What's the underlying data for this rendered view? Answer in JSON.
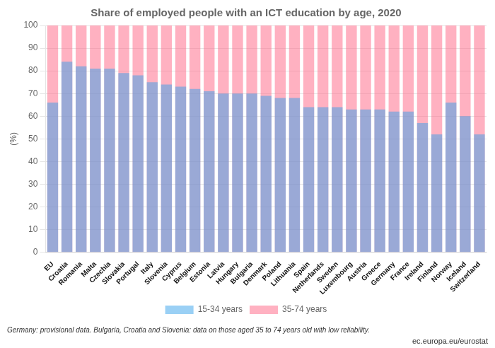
{
  "chart_data": {
    "type": "bar",
    "title": "Share of employed people with an ICT education by age, 2020",
    "ylabel": "(%)",
    "categories": [
      "EU",
      "Croatia",
      "Romania",
      "Malta",
      "Czechia",
      "Slovakia",
      "Portugal",
      "Italy",
      "Slovenia",
      "Cyprus",
      "Belgium",
      "Estonia",
      "Latvia",
      "Hungary",
      "Bulgaria",
      "Denmark",
      "Poland",
      "Lithuania",
      "Spain",
      "Netherlands",
      "Sweden",
      "Luxembourg",
      "Austria",
      "Greece",
      "Germany",
      "France",
      "Ireland",
      "Finland",
      "Norway",
      "Iceland",
      "Switzerland"
    ],
    "series": [
      {
        "name": "15-34 years",
        "values": [
          66,
          84,
          82,
          81,
          81,
          79,
          78,
          75,
          74,
          73,
          72,
          71,
          70,
          70,
          70,
          69,
          68,
          68,
          64,
          64,
          64,
          63,
          63,
          63,
          62,
          62,
          57,
          52,
          66,
          60,
          52
        ]
      },
      {
        "name": "35-74 years",
        "values": [
          100,
          100,
          100,
          100,
          100,
          100,
          100,
          100,
          100,
          100,
          100,
          100,
          100,
          100,
          100,
          100,
          100,
          100,
          100,
          100,
          100,
          100,
          100,
          100,
          100,
          100,
          100,
          100,
          100,
          100,
          100
        ]
      }
    ],
    "ylim": [
      0,
      100
    ],
    "yticks": [
      0,
      10,
      20,
      30,
      40,
      50,
      60,
      70,
      80,
      90,
      100
    ],
    "grid": true,
    "legend": "bottom",
    "annotations": [
      "Germany: provisional data. Bulgaria, Croatia and Slovenia: data on those aged 35 to 74 years old with low reliability.",
      "ec.europa.eu/eurostat"
    ]
  }
}
